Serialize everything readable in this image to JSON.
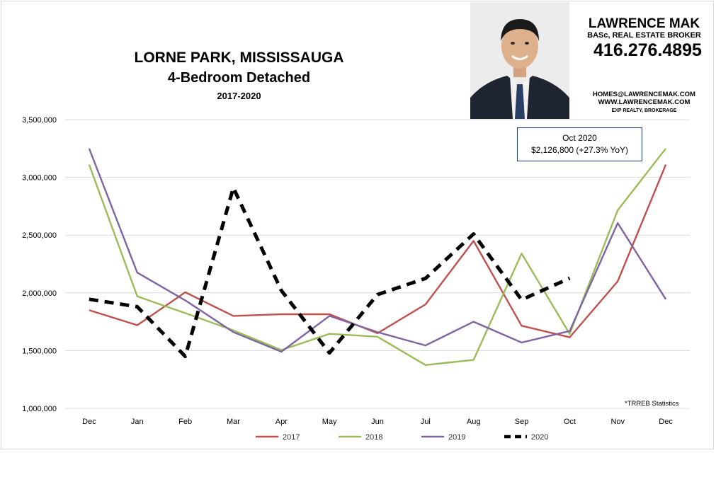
{
  "header": {
    "title": "LORNE PARK, MISSISSAUGA",
    "subtitle": "4-Bedroom Detached",
    "years": "2017-2020"
  },
  "brand": {
    "name": "LAWRENCE MAK",
    "credentials": "BASc, REAL ESTATE BROKER",
    "phone": "416.276.4895",
    "email": "HOMES@LAWRENCEMAK.COM",
    "website": "WWW.LAWRENCEMAK.COM",
    "brokerage": "EXP REALTY, BROKERAGE"
  },
  "callout": {
    "line1": "Oct 2020",
    "line2": "$2,126,800  (+27.3% YoY)"
  },
  "source_note": "*TRREB Statistics",
  "colors": {
    "2017": "#c0504d",
    "2018": "#9bbb59",
    "2019": "#8064a2",
    "2020": "#000000",
    "gridline": "#d9d9d9",
    "axis_text": "#000000",
    "callout_border": "#1f3864"
  },
  "chart_data": {
    "type": "line",
    "title": "LORNE PARK, MISSISSAUGA",
    "subtitle": "4-Bedroom Detached",
    "categories": [
      "Dec",
      "Jan",
      "Feb",
      "Mar",
      "Apr",
      "May",
      "Jun",
      "Jul",
      "Aug",
      "Sep",
      "Oct",
      "Nov",
      "Dec"
    ],
    "yticks": [
      "1,000,000",
      "1,500,000",
      "2,000,000",
      "2,500,000",
      "3,000,000",
      "3,500,000"
    ],
    "ylim": [
      1000000,
      3500000
    ],
    "grid": true,
    "legend_position": "bottom",
    "series": [
      {
        "name": "2017",
        "color": "#c0504d",
        "dashed": false,
        "values": [
          1850000,
          1720000,
          2005000,
          1800000,
          1815000,
          1815000,
          1650000,
          1900000,
          2450000,
          1715000,
          1615000,
          2100000,
          3110000
        ]
      },
      {
        "name": "2018",
        "color": "#9bbb59",
        "dashed": false,
        "values": [
          3110000,
          1970000,
          1825000,
          1675000,
          1505000,
          1645000,
          1620000,
          1375000,
          1420000,
          2340000,
          1645000,
          2715000,
          3250000
        ]
      },
      {
        "name": "2019",
        "color": "#8064a2",
        "dashed": false,
        "values": [
          3250000,
          2175000,
          1935000,
          1660000,
          1490000,
          1800000,
          1660000,
          1545000,
          1750000,
          1570000,
          1670000,
          2605000,
          1945000
        ]
      },
      {
        "name": "2020",
        "color": "#000000",
        "dashed": true,
        "values": [
          1945000,
          1880000,
          1450000,
          2910000,
          2020000,
          1480000,
          1985000,
          2125000,
          2510000,
          1940000,
          2126800,
          null,
          null
        ]
      }
    ]
  }
}
